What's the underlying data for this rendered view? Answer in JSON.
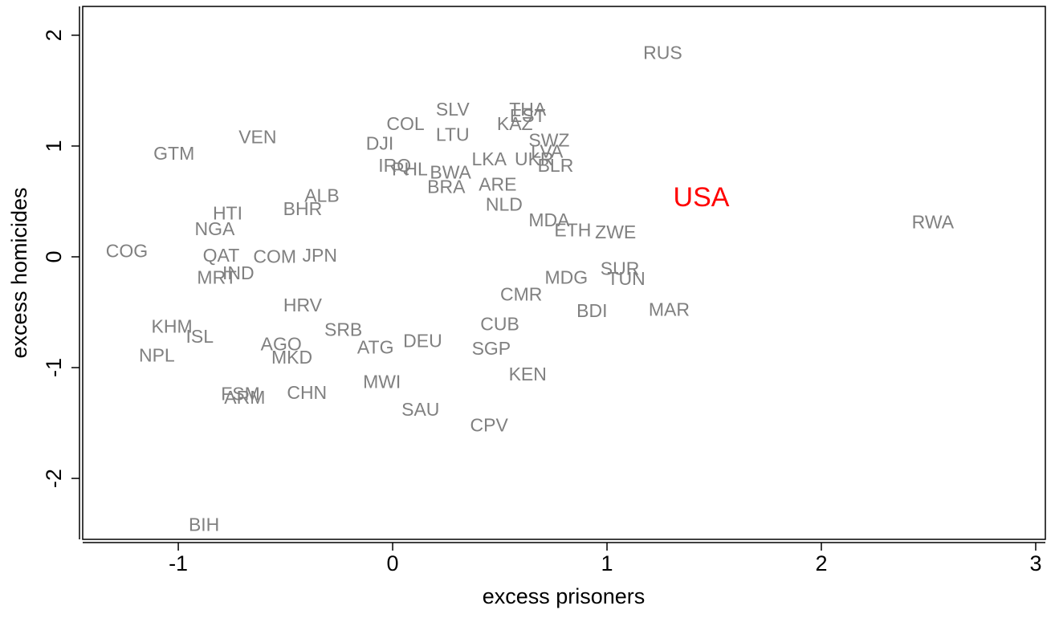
{
  "chart_data": {
    "type": "scatter",
    "x_label": "excess prisoners",
    "y_label": "excess homicides",
    "xlim": [
      -1.446,
      3.045
    ],
    "ylim": [
      -2.55,
      2.26
    ],
    "xticks": [
      -1,
      0,
      1,
      2,
      3
    ],
    "yticks": [
      -2,
      -1,
      0,
      1,
      2
    ],
    "series": [
      {
        "color": "#808080",
        "labels": [
          "RUS",
          "RWA",
          "SLV",
          "THA",
          "EST",
          "KAZ",
          "COL",
          "LTU",
          "VEN",
          "SWZ",
          "DJI",
          "GTM",
          "IRQ",
          "PHL",
          "BWA",
          "LKA",
          "UKR",
          "LVA",
          "BLR",
          "ARE",
          "BRA",
          "NLD",
          "HTI",
          "BHR",
          "ALB",
          "NGA",
          "ZWE",
          "ETH",
          "MDA",
          "COG",
          "QAT",
          "COM",
          "JPN",
          "SUR",
          "MDG",
          "TUN",
          "IND",
          "MRT",
          "CMR",
          "BDI",
          "MAR",
          "HRV",
          "KHM",
          "ISL",
          "CUB",
          "SRB",
          "AGO",
          "ATG",
          "DEU",
          "NPL",
          "MKD",
          "SGP",
          "KEN",
          "MWI",
          "FSM",
          "ARM",
          "CHN",
          "SAU",
          "CPV",
          "BIH"
        ],
        "x": [
          1.26,
          2.52,
          0.28,
          0.63,
          0.63,
          0.57,
          0.06,
          0.28,
          -0.63,
          0.73,
          -0.06,
          -1.02,
          0.01,
          0.08,
          0.27,
          0.45,
          0.66,
          0.72,
          0.76,
          0.49,
          0.25,
          0.52,
          -0.77,
          -0.42,
          -0.33,
          -0.83,
          1.04,
          0.84,
          0.73,
          -1.24,
          -0.8,
          -0.55,
          -0.34,
          1.06,
          0.81,
          1.09,
          -0.72,
          -0.82,
          0.6,
          0.93,
          1.29,
          -0.42,
          -1.03,
          -0.9,
          0.5,
          -0.23,
          -0.52,
          -0.08,
          0.14,
          -1.1,
          -0.47,
          0.46,
          0.63,
          -0.05,
          -0.71,
          -0.69,
          -0.4,
          0.13,
          0.45,
          -0.88
        ],
        "values": [
          1.83,
          0.3,
          1.32,
          1.32,
          1.26,
          1.19,
          1.19,
          1.09,
          1.07,
          1.04,
          1.01,
          0.92,
          0.81,
          0.78,
          0.75,
          0.87,
          0.87,
          0.94,
          0.81,
          0.64,
          0.62,
          0.46,
          0.38,
          0.42,
          0.54,
          0.24,
          0.21,
          0.23,
          0.32,
          0.04,
          0.0,
          -0.01,
          0.0,
          -0.12,
          -0.2,
          -0.21,
          -0.16,
          -0.2,
          -0.35,
          -0.5,
          -0.49,
          -0.45,
          -0.64,
          -0.73,
          -0.62,
          -0.67,
          -0.8,
          -0.83,
          -0.77,
          -0.9,
          -0.92,
          -0.84,
          -1.07,
          -1.14,
          -1.25,
          -1.28,
          -1.24,
          -1.39,
          -1.53,
          -2.43
        ]
      },
      {
        "color": "#ff0000",
        "labels": [
          "USA"
        ],
        "x": [
          1.44
        ],
        "values": [
          0.52
        ]
      }
    ]
  }
}
